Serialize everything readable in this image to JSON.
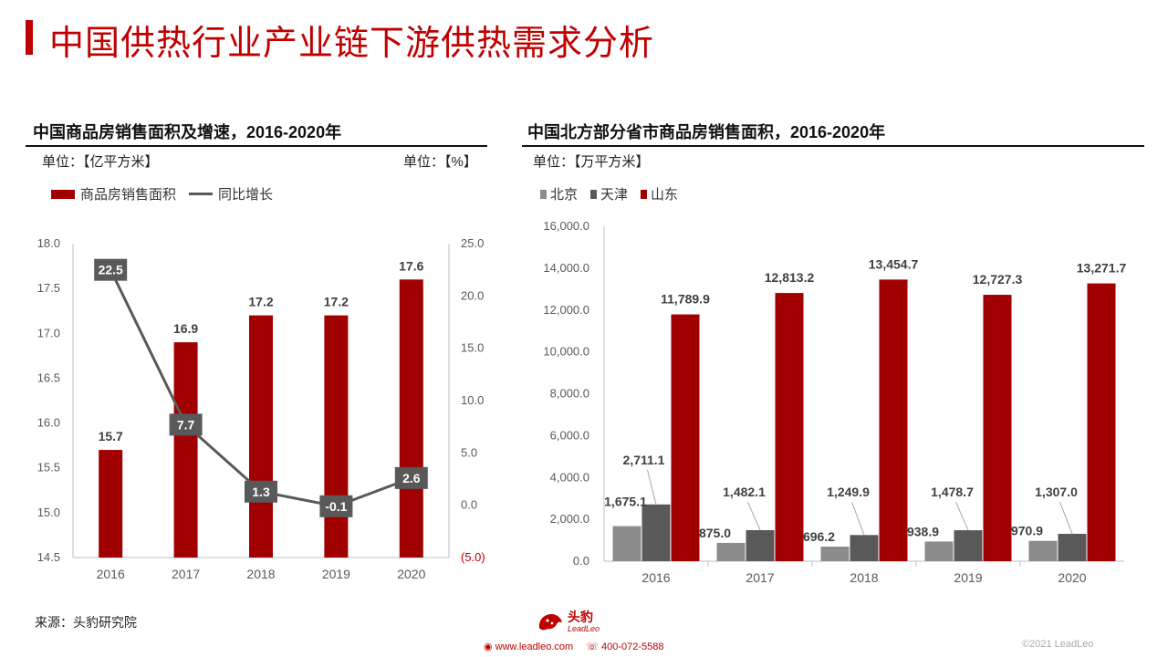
{
  "page": {
    "title": "中国供热行业产业链下游供热需求分析",
    "source": "来源：头豹研究院",
    "logo_cn": "头豹",
    "logo_en": "LeadLeo",
    "website": "www.leadleo.com",
    "phone": "400-072-5588",
    "copyright": "©2021 LeadLeo",
    "accent_color": "#c00000"
  },
  "left_panel": {
    "title": "中国商品房销售面积及增速，2016-2020年",
    "unit_left": "单位：【亿平方米】",
    "unit_right": "单位：【%】",
    "legend_bar": "商品房销售面积",
    "legend_line": "同比增长"
  },
  "right_panel": {
    "title": "中国北方部分省市商品房销售面积，2016-2020年",
    "unit": "单位：【万平方米】",
    "legend": [
      "北京",
      "天津",
      "山东"
    ]
  },
  "chart_data": [
    {
      "type": "bar",
      "categories": [
        "2016",
        "2017",
        "2018",
        "2019",
        "2020"
      ],
      "series": [
        {
          "name": "商品房销售面积",
          "type": "bar",
          "axis": "left",
          "values": [
            15.7,
            16.9,
            17.2,
            17.2,
            17.6
          ],
          "labels": [
            "15.7",
            "16.9",
            "17.2",
            "17.2",
            "17.6"
          ],
          "color": "#a00000"
        },
        {
          "name": "同比增长",
          "type": "line",
          "axis": "right",
          "values": [
            22.5,
            7.7,
            1.3,
            -0.1,
            2.6
          ],
          "labels": [
            "22.5",
            "7.7",
            "1.3",
            "-0.1",
            "2.6"
          ],
          "color": "#595959"
        }
      ],
      "y_left": {
        "min": 14.5,
        "max": 18.0,
        "ticks": [
          "14.5",
          "15.0",
          "15.5",
          "16.0",
          "16.5",
          "17.0",
          "17.5",
          "18.0"
        ]
      },
      "y_right": {
        "min": -5,
        "max": 25,
        "ticks": [
          "(5.0)",
          "0.0",
          "5.0",
          "10.0",
          "15.0",
          "20.0",
          "25.0"
        ]
      },
      "grid": false,
      "legend_position": "top-left"
    },
    {
      "type": "bar",
      "categories": [
        "2016",
        "2017",
        "2018",
        "2019",
        "2020"
      ],
      "series": [
        {
          "name": "北京",
          "values": [
            1675.1,
            875.0,
            696.2,
            938.9,
            970.9
          ],
          "labels": [
            "1,675.1",
            "875.0",
            "696.2",
            "938.9",
            "970.9"
          ],
          "color": "#8c8c8c"
        },
        {
          "name": "天津",
          "values": [
            2711.1,
            1482.1,
            1249.9,
            1478.7,
            1307.0
          ],
          "labels": [
            "2,711.1",
            "1,482.1",
            "1,249.9",
            "1,478.7",
            "1,307.0"
          ],
          "color": "#595959"
        },
        {
          "name": "山东",
          "values": [
            11789.9,
            12813.2,
            13454.7,
            12727.3,
            13271.7
          ],
          "labels": [
            "11,789.9",
            "12,813.2",
            "13,454.7",
            "12,727.3",
            "13,271.7"
          ],
          "color": "#a00000"
        }
      ],
      "y": {
        "min": 0,
        "max": 16000,
        "ticks": [
          "0.0",
          "2,000.0",
          "4,000.0",
          "6,000.0",
          "8,000.0",
          "10,000.0",
          "12,000.0",
          "14,000.0",
          "16,000.0"
        ]
      },
      "grid": false,
      "legend_position": "top-left"
    }
  ]
}
